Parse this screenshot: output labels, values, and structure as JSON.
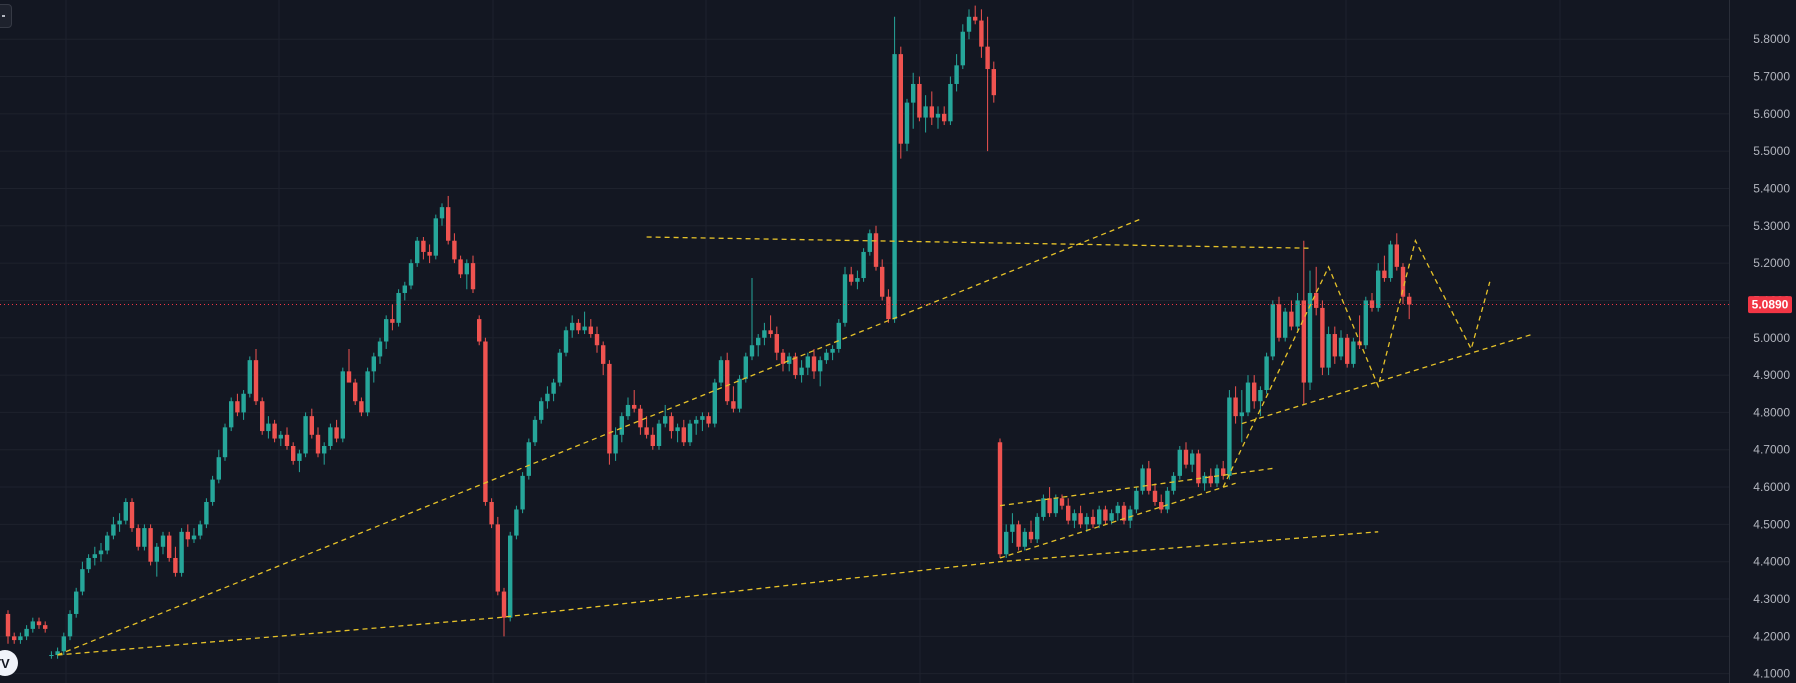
{
  "colors": {
    "background": "#131722",
    "grid": "#1e222d",
    "up": "#26a69a",
    "down": "#ef5350",
    "last_price": "#f23645",
    "trendline": "#e6c229",
    "axis_text": "#b2b5be"
  },
  "chart_data": {
    "type": "candlestick",
    "title": "",
    "xlabel": "",
    "ylabel": "",
    "ylim": [
      4.075,
      5.905
    ],
    "y_ticks": [
      "4.1000",
      "4.2000",
      "4.3000",
      "4.4000",
      "4.5000",
      "4.6000",
      "4.7000",
      "4.8000",
      "4.9000",
      "5.0000",
      "5.1000",
      "5.2000",
      "5.3000",
      "5.4000",
      "5.5000",
      "5.6000",
      "5.7000",
      "5.8000"
    ],
    "last_price": 5.089,
    "last_price_label": "5.0890",
    "grid": true,
    "legend": "none",
    "candles_note": "OHLC values estimated from the rendered candles; index 0..194",
    "candles": [
      [
        4.26,
        4.27,
        4.18,
        4.2
      ],
      [
        4.2,
        4.21,
        4.18,
        4.19
      ],
      [
        4.19,
        4.21,
        4.18,
        4.2
      ],
      [
        4.2,
        4.23,
        4.19,
        4.22
      ],
      [
        4.22,
        4.25,
        4.21,
        4.24
      ],
      [
        4.24,
        4.25,
        4.22,
        4.23
      ],
      [
        4.23,
        4.24,
        4.21,
        4.22
      ],
      [
        4.15,
        4.16,
        4.14,
        4.15
      ],
      [
        4.15,
        4.17,
        4.14,
        4.16
      ],
      [
        4.16,
        4.21,
        4.15,
        4.2
      ],
      [
        4.2,
        4.27,
        4.19,
        4.26
      ],
      [
        4.26,
        4.33,
        4.25,
        4.32
      ],
      [
        4.32,
        4.4,
        4.31,
        4.38
      ],
      [
        4.38,
        4.42,
        4.37,
        4.41
      ],
      [
        4.41,
        4.44,
        4.39,
        4.42
      ],
      [
        4.42,
        4.45,
        4.4,
        4.43
      ],
      [
        4.43,
        4.48,
        4.42,
        4.47
      ],
      [
        4.47,
        4.52,
        4.46,
        4.5
      ],
      [
        4.5,
        4.53,
        4.48,
        4.51
      ],
      [
        4.51,
        4.57,
        4.5,
        4.56
      ],
      [
        4.56,
        4.57,
        4.48,
        4.49
      ],
      [
        4.49,
        4.5,
        4.43,
        4.44
      ],
      [
        4.44,
        4.5,
        4.43,
        4.49
      ],
      [
        4.49,
        4.5,
        4.39,
        4.4
      ],
      [
        4.4,
        4.45,
        4.36,
        4.44
      ],
      [
        4.44,
        4.48,
        4.42,
        4.47
      ],
      [
        4.47,
        4.48,
        4.4,
        4.41
      ],
      [
        4.41,
        4.44,
        4.36,
        4.37
      ],
      [
        4.37,
        4.49,
        4.36,
        4.48
      ],
      [
        4.48,
        4.5,
        4.44,
        4.46
      ],
      [
        4.46,
        4.49,
        4.45,
        4.47
      ],
      [
        4.47,
        4.51,
        4.46,
        4.5
      ],
      [
        4.5,
        4.57,
        4.49,
        4.56
      ],
      [
        4.56,
        4.63,
        4.55,
        4.62
      ],
      [
        4.62,
        4.7,
        4.61,
        4.68
      ],
      [
        4.68,
        4.77,
        4.67,
        4.76
      ],
      [
        4.76,
        4.84,
        4.75,
        4.83
      ],
      [
        4.83,
        4.85,
        4.79,
        4.8
      ],
      [
        4.8,
        4.86,
        4.78,
        4.85
      ],
      [
        4.85,
        4.95,
        4.84,
        4.94
      ],
      [
        4.94,
        4.97,
        4.82,
        4.83
      ],
      [
        4.83,
        4.84,
        4.74,
        4.75
      ],
      [
        4.75,
        4.79,
        4.73,
        4.77
      ],
      [
        4.77,
        4.78,
        4.72,
        4.73
      ],
      [
        4.73,
        4.75,
        4.71,
        4.74
      ],
      [
        4.74,
        4.76,
        4.7,
        4.71
      ],
      [
        4.71,
        4.72,
        4.66,
        4.67
      ],
      [
        4.67,
        4.7,
        4.64,
        4.69
      ],
      [
        4.69,
        4.8,
        4.68,
        4.79
      ],
      [
        4.79,
        4.81,
        4.73,
        4.74
      ],
      [
        4.74,
        4.76,
        4.68,
        4.69
      ],
      [
        4.69,
        4.72,
        4.66,
        4.71
      ],
      [
        4.71,
        4.77,
        4.7,
        4.76
      ],
      [
        4.76,
        4.78,
        4.72,
        4.73
      ],
      [
        4.73,
        4.92,
        4.72,
        4.91
      ],
      [
        4.91,
        4.97,
        4.88,
        4.88
      ],
      [
        4.88,
        4.89,
        4.82,
        4.83
      ],
      [
        4.83,
        4.84,
        4.79,
        4.8
      ],
      [
        4.8,
        4.92,
        4.79,
        4.91
      ],
      [
        4.91,
        4.96,
        4.88,
        4.95
      ],
      [
        4.95,
        5.0,
        4.93,
        4.99
      ],
      [
        4.99,
        5.06,
        4.97,
        5.05
      ],
      [
        5.05,
        5.09,
        5.02,
        5.04
      ],
      [
        5.04,
        5.13,
        5.03,
        5.12
      ],
      [
        5.12,
        5.15,
        5.1,
        5.14
      ],
      [
        5.14,
        5.21,
        5.13,
        5.2
      ],
      [
        5.2,
        5.27,
        5.19,
        5.26
      ],
      [
        5.26,
        5.27,
        5.21,
        5.23
      ],
      [
        5.23,
        5.25,
        5.2,
        5.22
      ],
      [
        5.22,
        5.33,
        5.21,
        5.32
      ],
      [
        5.32,
        5.36,
        5.3,
        5.35
      ],
      [
        5.35,
        5.38,
        5.25,
        5.26
      ],
      [
        5.26,
        5.28,
        5.2,
        5.21
      ],
      [
        5.21,
        5.22,
        5.16,
        5.17
      ],
      [
        5.17,
        5.21,
        5.13,
        5.2
      ],
      [
        5.2,
        5.22,
        5.12,
        5.13
      ],
      [
        5.05,
        5.06,
        4.98,
        4.99
      ],
      [
        4.99,
        5.0,
        4.55,
        4.56
      ],
      [
        4.56,
        4.57,
        4.49,
        4.5
      ],
      [
        4.5,
        4.52,
        4.31,
        4.32
      ],
      [
        4.32,
        4.33,
        4.2,
        4.25
      ],
      [
        4.25,
        4.48,
        4.24,
        4.47
      ],
      [
        4.47,
        4.55,
        4.46,
        4.54
      ],
      [
        4.54,
        4.64,
        4.53,
        4.63
      ],
      [
        4.63,
        4.73,
        4.62,
        4.72
      ],
      [
        4.72,
        4.79,
        4.71,
        4.78
      ],
      [
        4.78,
        4.84,
        4.77,
        4.83
      ],
      [
        4.83,
        4.87,
        4.81,
        4.85
      ],
      [
        4.85,
        4.89,
        4.83,
        4.88
      ],
      [
        4.88,
        4.97,
        4.87,
        4.96
      ],
      [
        4.96,
        5.03,
        4.95,
        5.02
      ],
      [
        5.02,
        5.06,
        5.0,
        5.04
      ],
      [
        5.04,
        5.05,
        5.01,
        5.02
      ],
      [
        5.02,
        5.07,
        5.01,
        5.03
      ],
      [
        5.03,
        5.05,
        5.0,
        5.01
      ],
      [
        5.01,
        5.03,
        4.96,
        4.98
      ],
      [
        4.98,
        4.99,
        4.9,
        4.93
      ],
      [
        4.93,
        4.94,
        4.66,
        4.69
      ],
      [
        4.69,
        4.76,
        4.67,
        4.74
      ],
      [
        4.74,
        4.8,
        4.72,
        4.79
      ],
      [
        4.79,
        4.84,
        4.78,
        4.82
      ],
      [
        4.82,
        4.86,
        4.8,
        4.81
      ],
      [
        4.81,
        4.82,
        4.74,
        4.76
      ],
      [
        4.76,
        4.79,
        4.73,
        4.74
      ],
      [
        4.74,
        4.76,
        4.7,
        4.71
      ],
      [
        4.71,
        4.78,
        4.7,
        4.77
      ],
      [
        4.77,
        4.82,
        4.76,
        4.79
      ],
      [
        4.79,
        4.8,
        4.73,
        4.75
      ],
      [
        4.75,
        4.77,
        4.72,
        4.76
      ],
      [
        4.76,
        4.78,
        4.71,
        4.72
      ],
      [
        4.72,
        4.78,
        4.71,
        4.77
      ],
      [
        4.77,
        4.79,
        4.74,
        4.78
      ],
      [
        4.78,
        4.8,
        4.75,
        4.79
      ],
      [
        4.79,
        4.8,
        4.76,
        4.77
      ],
      [
        4.77,
        4.89,
        4.76,
        4.88
      ],
      [
        4.88,
        4.95,
        4.87,
        4.94
      ],
      [
        4.94,
        4.96,
        4.82,
        4.83
      ],
      [
        4.83,
        4.87,
        4.8,
        4.81
      ],
      [
        4.81,
        4.9,
        4.8,
        4.89
      ],
      [
        4.89,
        4.96,
        4.88,
        4.95
      ],
      [
        4.95,
        5.16,
        4.94,
        4.98
      ],
      [
        4.98,
        5.01,
        4.95,
        5.0
      ],
      [
        5.0,
        5.04,
        4.98,
        5.02
      ],
      [
        5.02,
        5.06,
        5.0,
        5.01
      ],
      [
        5.01,
        5.03,
        4.94,
        4.96
      ],
      [
        4.96,
        4.97,
        4.91,
        4.93
      ],
      [
        4.93,
        4.96,
        4.91,
        4.95
      ],
      [
        4.95,
        4.96,
        4.89,
        4.9
      ],
      [
        4.9,
        4.94,
        4.88,
        4.92
      ],
      [
        4.92,
        4.96,
        4.9,
        4.95
      ],
      [
        4.95,
        4.97,
        4.89,
        4.91
      ],
      [
        4.91,
        4.95,
        4.87,
        4.94
      ],
      [
        4.94,
        4.97,
        4.93,
        4.96
      ],
      [
        4.96,
        4.98,
        4.94,
        4.97
      ],
      [
        4.97,
        5.05,
        4.96,
        5.04
      ],
      [
        5.04,
        5.19,
        5.03,
        5.17
      ],
      [
        5.17,
        5.19,
        5.14,
        5.15
      ],
      [
        5.15,
        5.18,
        5.13,
        5.16
      ],
      [
        5.16,
        5.24,
        5.15,
        5.23
      ],
      [
        5.23,
        5.29,
        5.22,
        5.28
      ],
      [
        5.28,
        5.3,
        5.18,
        5.19
      ],
      [
        5.19,
        5.21,
        5.1,
        5.11
      ],
      [
        5.11,
        5.13,
        5.04,
        5.05
      ],
      [
        5.05,
        5.86,
        5.04,
        5.76
      ],
      [
        5.76,
        5.78,
        5.48,
        5.52
      ],
      [
        5.52,
        5.64,
        5.5,
        5.63
      ],
      [
        5.63,
        5.71,
        5.56,
        5.68
      ],
      [
        5.68,
        5.7,
        5.58,
        5.59
      ],
      [
        5.59,
        5.65,
        5.55,
        5.62
      ],
      [
        5.62,
        5.66,
        5.57,
        5.59
      ],
      [
        5.59,
        5.62,
        5.56,
        5.6
      ],
      [
        5.6,
        5.62,
        5.57,
        5.58
      ],
      [
        5.58,
        5.7,
        5.57,
        5.68
      ],
      [
        5.68,
        5.76,
        5.66,
        5.73
      ],
      [
        5.73,
        5.84,
        5.72,
        5.82
      ],
      [
        5.82,
        5.88,
        5.8,
        5.86
      ],
      [
        5.86,
        5.89,
        5.84,
        5.85
      ],
      [
        5.85,
        5.88,
        5.75,
        5.78
      ],
      [
        5.78,
        5.86,
        5.5,
        5.72
      ],
      [
        5.72,
        5.74,
        5.63,
        5.65
      ],
      [
        4.72,
        4.73,
        4.41,
        4.42
      ],
      [
        4.42,
        4.5,
        4.41,
        4.48
      ],
      [
        4.48,
        4.53,
        4.45,
        4.5
      ],
      [
        4.5,
        4.51,
        4.43,
        4.44
      ],
      [
        4.44,
        4.49,
        4.43,
        4.48
      ],
      [
        4.48,
        4.51,
        4.45,
        4.46
      ],
      [
        4.46,
        4.53,
        4.45,
        4.52
      ],
      [
        4.52,
        4.58,
        4.51,
        4.57
      ],
      [
        4.57,
        4.6,
        4.52,
        4.53
      ],
      [
        4.53,
        4.58,
        4.52,
        4.57
      ],
      [
        4.57,
        4.58,
        4.54,
        4.55
      ],
      [
        4.55,
        4.57,
        4.5,
        4.51
      ],
      [
        4.51,
        4.54,
        4.49,
        4.53
      ],
      [
        4.53,
        4.55,
        4.49,
        4.5
      ],
      [
        4.5,
        4.53,
        4.48,
        4.52
      ],
      [
        4.52,
        4.54,
        4.49,
        4.5
      ],
      [
        4.5,
        4.55,
        4.49,
        4.54
      ],
      [
        4.54,
        4.55,
        4.5,
        4.51
      ],
      [
        4.51,
        4.54,
        4.5,
        4.53
      ],
      [
        4.53,
        4.56,
        4.51,
        4.55
      ],
      [
        4.55,
        4.56,
        4.5,
        4.51
      ],
      [
        4.51,
        4.55,
        4.49,
        4.54
      ],
      [
        4.54,
        4.6,
        4.53,
        4.59
      ],
      [
        4.59,
        4.66,
        4.58,
        4.65
      ],
      [
        4.65,
        4.67,
        4.58,
        4.59
      ],
      [
        4.59,
        4.61,
        4.55,
        4.56
      ],
      [
        4.56,
        4.58,
        4.53,
        4.54
      ],
      [
        4.54,
        4.6,
        4.53,
        4.59
      ],
      [
        4.59,
        4.64,
        4.58,
        4.63
      ],
      [
        4.63,
        4.71,
        4.62,
        4.7
      ],
      [
        4.7,
        4.72,
        4.65,
        4.66
      ],
      [
        4.66,
        4.7,
        4.64,
        4.69
      ],
      [
        4.69,
        4.7,
        4.6,
        4.61
      ],
      [
        4.61,
        4.64,
        4.59,
        4.63
      ],
      [
        4.63,
        4.65,
        4.6,
        4.61
      ],
      [
        4.61,
        4.66,
        4.6,
        4.65
      ],
      [
        4.65,
        4.67,
        4.62,
        4.63
      ],
      [
        4.63,
        4.86,
        4.62,
        4.84
      ],
      [
        4.84,
        4.87,
        4.77,
        4.79
      ],
      [
        4.79,
        4.86,
        4.72,
        4.8
      ],
      [
        4.8,
        4.9,
        4.79,
        4.88
      ],
      [
        4.88,
        4.9,
        4.81,
        4.83
      ],
      [
        4.83,
        4.87,
        4.79,
        4.86
      ],
      [
        4.86,
        4.96,
        4.85,
        4.95
      ],
      [
        4.95,
        5.1,
        4.94,
        5.09
      ],
      [
        5.09,
        5.11,
        4.99,
        5.0
      ],
      [
        5.0,
        5.08,
        4.99,
        5.07
      ],
      [
        5.07,
        5.1,
        5.02,
        5.03
      ],
      [
        5.03,
        5.12,
        5.02,
        5.1
      ],
      [
        5.1,
        5.26,
        4.82,
        4.88
      ]
    ],
    "candles_tail": [
      [
        4.88,
        5.18,
        4.86,
        5.12
      ],
      [
        5.12,
        5.19,
        5.06,
        5.08
      ],
      [
        5.08,
        5.1,
        4.9,
        4.92
      ],
      [
        4.92,
        5.03,
        4.9,
        5.01
      ],
      [
        5.01,
        5.03,
        4.93,
        4.95
      ],
      [
        4.95,
        5.02,
        4.94,
        5.0
      ],
      [
        5.0,
        5.01,
        4.92,
        4.93
      ],
      [
        4.93,
        5.0,
        4.92,
        4.99
      ],
      [
        4.99,
        5.06,
        4.97,
        4.98
      ],
      [
        4.98,
        5.11,
        4.97,
        5.1
      ],
      [
        5.1,
        5.12,
        5.07,
        5.08
      ],
      [
        5.08,
        5.2,
        5.07,
        5.18
      ],
      [
        5.18,
        5.22,
        5.15,
        5.16
      ],
      [
        5.16,
        5.26,
        5.15,
        5.25
      ],
      [
        5.25,
        5.28,
        5.18,
        5.19
      ],
      [
        5.19,
        5.2,
        5.09,
        5.11
      ],
      [
        5.11,
        5.12,
        5.05,
        5.089
      ]
    ],
    "trendlines": [
      {
        "style": "dashed",
        "points": [
          [
            "c8",
            4.15
          ],
          [
            "c183",
            5.32
          ]
        ]
      },
      {
        "style": "dashed",
        "points": [
          [
            "c8",
            4.15
          ],
          [
            "c79",
            4.25
          ],
          [
            "c160",
            4.4
          ],
          [
            "c221",
            4.48
          ]
        ]
      },
      {
        "style": "dashed",
        "points": [
          [
            "c103",
            5.27
          ],
          [
            "c210",
            5.24
          ]
        ]
      },
      {
        "style": "dashed",
        "points": [
          [
            "c160",
            4.55
          ],
          [
            "c204",
            4.65
          ]
        ]
      },
      {
        "style": "dashed",
        "points": [
          [
            "c160",
            4.41
          ],
          [
            "c198",
            4.61
          ]
        ]
      },
      {
        "style": "dashed",
        "points": [
          [
            "c196",
            4.6
          ],
          [
            "c213",
            5.19
          ],
          [
            "c221",
            4.87
          ],
          [
            "c227",
            5.26
          ],
          [
            "c236",
            4.97
          ],
          [
            "c239",
            5.15
          ]
        ]
      },
      {
        "style": "dashed",
        "points": [
          [
            "c199",
            4.77
          ],
          [
            "c246",
            5.01
          ]
        ]
      }
    ]
  }
}
